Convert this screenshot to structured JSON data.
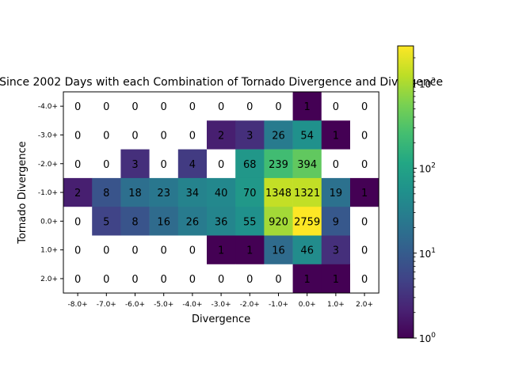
{
  "chart_data": {
    "type": "heatmap",
    "title": "Since 2002 Days with each Combination of Tornado Divergence and Divergence",
    "xlabel": "Divergence",
    "ylabel": "Tornado Divergence",
    "x_categories": [
      "-8.0+",
      "-7.0+",
      "-6.0+",
      "-5.0+",
      "-4.0+",
      "-3.0+",
      "-2.0+",
      "-1.0+",
      "0.0+",
      "1.0+",
      "2.0+"
    ],
    "y_categories": [
      "-4.0+",
      "-3.0+",
      "-2.0+",
      "-1.0+",
      "0.0+",
      "1.0+",
      "2.0+"
    ],
    "values": [
      [
        0,
        0,
        0,
        0,
        0,
        0,
        0,
        0,
        1,
        0,
        0
      ],
      [
        0,
        0,
        0,
        0,
        0,
        2,
        3,
        26,
        54,
        1,
        0
      ],
      [
        0,
        0,
        3,
        0,
        4,
        0,
        68,
        239,
        394,
        0,
        0
      ],
      [
        2,
        8,
        18,
        23,
        34,
        40,
        70,
        1348,
        1321,
        19,
        1
      ],
      [
        0,
        5,
        8,
        16,
        26,
        36,
        55,
        920,
        2759,
        9,
        0
      ],
      [
        0,
        0,
        0,
        0,
        0,
        1,
        1,
        16,
        46,
        3,
        0
      ],
      [
        0,
        0,
        0,
        0,
        0,
        0,
        0,
        0,
        1,
        1,
        0
      ]
    ],
    "color_scale": "log",
    "colormap": "viridis",
    "zero_color": "#ffffff",
    "colorbar": {
      "range": [
        1,
        2759
      ],
      "ticks": [
        {
          "value": 1,
          "base": "10",
          "exp": "0"
        },
        {
          "value": 10,
          "base": "10",
          "exp": "1"
        },
        {
          "value": 100,
          "base": "10",
          "exp": "2"
        },
        {
          "value": 1000,
          "base": "10",
          "exp": "3"
        }
      ]
    },
    "grid": false,
    "legend": "none"
  }
}
